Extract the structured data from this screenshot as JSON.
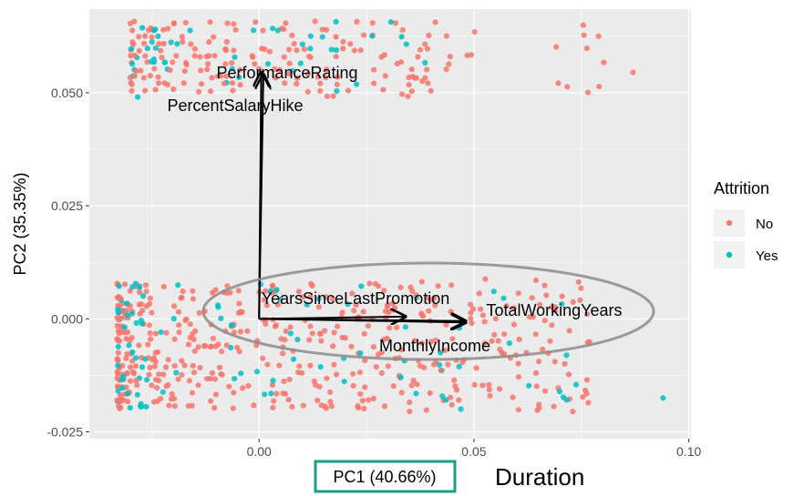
{
  "chart_data": {
    "type": "scatter",
    "title": "",
    "xlabel": "PC1 (40.66%)",
    "ylabel": "PC2 (35.35%)",
    "xlim": [
      -0.0395,
      0.1005
    ],
    "ylim": [
      -0.0265,
      0.0685
    ],
    "x_ticks": [
      0.0,
      0.05,
      0.1
    ],
    "x_tick_labels": [
      "0.00",
      "0.05",
      "0.10"
    ],
    "y_ticks": [
      -0.025,
      0.0,
      0.025,
      0.05
    ],
    "y_tick_labels": [
      "-0.025",
      "0.000",
      "0.025",
      "0.050"
    ],
    "grid": true,
    "legend": {
      "title": "Attrition",
      "position": "right",
      "entries": [
        "No",
        "Yes"
      ]
    },
    "series": [
      {
        "name": "No",
        "color": "#F8766D",
        "point_count_approx": 1233
      },
      {
        "name": "Yes",
        "color": "#00BFC4",
        "point_count_approx": 237
      }
    ],
    "clusters": [
      {
        "name": "upper band",
        "x_range": [
          -0.031,
          0.087
        ],
        "y_range": [
          0.048,
          0.066
        ]
      },
      {
        "name": "lower band",
        "x_range": [
          -0.034,
          0.094
        ],
        "y_range": [
          -0.0205,
          0.0085
        ]
      }
    ],
    "outlier_points": [
      {
        "series": "Yes",
        "x": 0.094,
        "y": -0.0175
      },
      {
        "series": "No",
        "x": 0.087,
        "y": 0.0545
      },
      {
        "series": "No",
        "x": 0.079,
        "y": 0.0625
      },
      {
        "series": "No",
        "x": 0.073,
        "y": -0.0205
      }
    ],
    "loadings": [
      {
        "label": "PerformanceRating",
        "x": 0.0005,
        "y": 0.0545
      },
      {
        "label": "PercentSalaryHike",
        "x": 0.001,
        "y": 0.054
      },
      {
        "label": "YearsSinceLastPromotion",
        "x": 0.034,
        "y": 0.0005
      },
      {
        "label": "TotalWorkingYears",
        "x": 0.048,
        "y": -0.0005
      },
      {
        "label": "MonthlyIncome",
        "x": 0.048,
        "y": -0.0008
      }
    ],
    "annotation_text": "Duration",
    "colors": {
      "panel": "#EBEBEB",
      "grid": "#FFFFFF",
      "arrow": "#000000",
      "ellipse": "#8C8C8C",
      "xlabel_box": "#1A9E86"
    }
  }
}
